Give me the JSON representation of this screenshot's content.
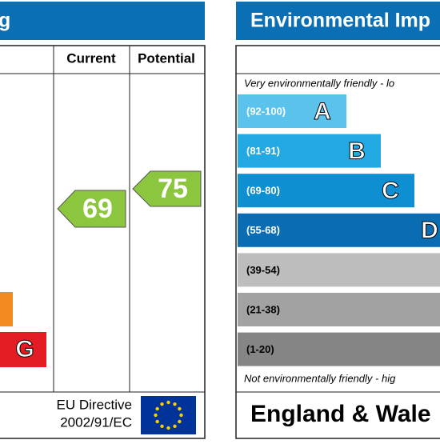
{
  "energy_panel": {
    "title": "g",
    "headers": [
      "Current",
      "Potential"
    ],
    "current": {
      "value": 69
    },
    "potential": {
      "value": 75
    },
    "bands": [
      {
        "letter": "G"
      }
    ],
    "footer": [
      "EU Directive",
      "2002/91/EC"
    ]
  },
  "environment_panel": {
    "title": "Environmental Imp",
    "top_note": "Very environmentally friendly - lo",
    "bands": [
      {
        "range": "(92-100)",
        "letter": "A"
      },
      {
        "range": "(81-91)",
        "letter": "B"
      },
      {
        "range": "(69-80)",
        "letter": "C"
      },
      {
        "range": "(55-68)",
        "letter": "D"
      },
      {
        "range": "(39-54)"
      },
      {
        "range": "(21-38)"
      },
      {
        "range": "(1-20)"
      }
    ],
    "bottom_note": "Not environmentally friendly - hig",
    "footer": "England & Wale"
  }
}
